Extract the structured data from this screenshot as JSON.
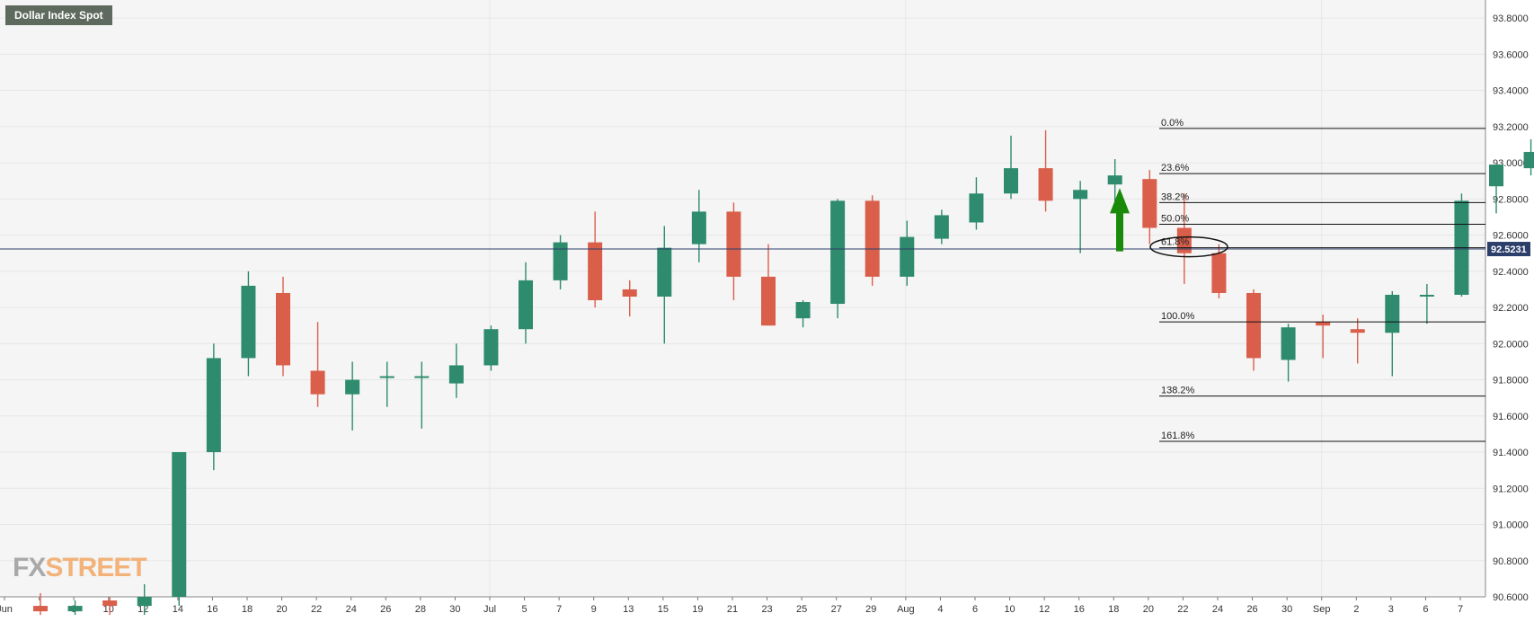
{
  "title": "Dollar Index Spot",
  "watermark": {
    "part1": "FX",
    "part2": "STREET"
  },
  "colors": {
    "up": "#2e8b6e",
    "down": "#d95f4b",
    "arrow": "#1a8a0a",
    "price_line": "#2c3e6a",
    "grid": "#e6e6e6",
    "plot_bg": "#f5f5f5"
  },
  "current_price_label": "92.5231",
  "chart_data": {
    "type": "candlestick",
    "ylim": [
      90.6,
      93.9
    ],
    "y_ticks": [
      "93.8000",
      "93.6000",
      "93.4000",
      "93.2000",
      "93.0000",
      "92.8000",
      "92.6000",
      "92.4000",
      "92.2000",
      "92.0000",
      "91.8000",
      "91.6000",
      "91.4000",
      "91.2000",
      "91.0000",
      "90.8000",
      "90.6000"
    ],
    "x_tick_labels": [
      "Jun",
      "4",
      "8",
      "10",
      "12",
      "14",
      "16",
      "18",
      "20",
      "22",
      "24",
      "26",
      "28",
      "30",
      "Jul",
      "5",
      "7",
      "9",
      "13",
      "15",
      "19",
      "21",
      "23",
      "25",
      "27",
      "29",
      "Aug",
      "4",
      "6",
      "10",
      "12",
      "16",
      "18",
      "20",
      "22",
      "24",
      "26",
      "30",
      "Sep",
      "2",
      "3",
      "6",
      "7"
    ],
    "current_price": 92.5231,
    "candles": [
      {
        "o": 90.55,
        "h": 90.62,
        "l": 90.5,
        "c": 90.52
      },
      {
        "o": 90.52,
        "h": 90.58,
        "l": 90.5,
        "c": 90.55
      },
      {
        "o": 90.58,
        "h": 90.6,
        "l": 90.5,
        "c": 90.55
      },
      {
        "o": 90.55,
        "h": 90.67,
        "l": 90.5,
        "c": 90.6
      },
      {
        "o": 90.6,
        "h": 91.4,
        "l": 90.55,
        "c": 91.4
      },
      {
        "o": 91.4,
        "h": 92.0,
        "l": 91.3,
        "c": 91.92
      },
      {
        "o": 91.92,
        "h": 92.4,
        "l": 91.82,
        "c": 92.32
      },
      {
        "o": 92.28,
        "h": 92.37,
        "l": 91.82,
        "c": 91.88
      },
      {
        "o": 91.85,
        "h": 92.12,
        "l": 91.65,
        "c": 91.72
      },
      {
        "o": 91.72,
        "h": 91.9,
        "l": 91.52,
        "c": 91.8
      },
      {
        "o": 91.82,
        "h": 91.9,
        "l": 91.65,
        "c": 91.82
      },
      {
        "o": 91.82,
        "h": 91.9,
        "l": 91.53,
        "c": 91.82
      },
      {
        "o": 91.78,
        "h": 92.0,
        "l": 91.7,
        "c": 91.88
      },
      {
        "o": 91.88,
        "h": 92.1,
        "l": 91.85,
        "c": 92.08
      },
      {
        "o": 92.08,
        "h": 92.45,
        "l": 92.0,
        "c": 92.35
      },
      {
        "o": 92.35,
        "h": 92.6,
        "l": 92.3,
        "c": 92.56
      },
      {
        "o": 92.56,
        "h": 92.73,
        "l": 92.2,
        "c": 92.24
      },
      {
        "o": 92.3,
        "h": 92.35,
        "l": 92.15,
        "c": 92.26
      },
      {
        "o": 92.26,
        "h": 92.65,
        "l": 92.0,
        "c": 92.53
      },
      {
        "o": 92.55,
        "h": 92.85,
        "l": 92.45,
        "c": 92.73
      },
      {
        "o": 92.73,
        "h": 92.78,
        "l": 92.24,
        "c": 92.37
      },
      {
        "o": 92.37,
        "h": 92.55,
        "l": 92.1,
        "c": 92.1
      },
      {
        "o": 92.14,
        "h": 92.24,
        "l": 92.09,
        "c": 92.23
      },
      {
        "o": 92.22,
        "h": 92.8,
        "l": 92.14,
        "c": 92.79
      },
      {
        "o": 92.79,
        "h": 92.82,
        "l": 92.32,
        "c": 92.37
      },
      {
        "o": 92.37,
        "h": 92.68,
        "l": 92.32,
        "c": 92.59
      },
      {
        "o": 92.58,
        "h": 92.74,
        "l": 92.55,
        "c": 92.71
      },
      {
        "o": 92.67,
        "h": 92.92,
        "l": 92.63,
        "c": 92.83
      },
      {
        "o": 92.83,
        "h": 93.15,
        "l": 92.8,
        "c": 92.97
      },
      {
        "o": 92.97,
        "h": 93.18,
        "l": 92.73,
        "c": 92.79
      },
      {
        "o": 92.8,
        "h": 92.9,
        "l": 92.5,
        "c": 92.85
      },
      {
        "o": 92.88,
        "h": 93.02,
        "l": 92.78,
        "c": 92.93
      },
      {
        "o": 92.91,
        "h": 92.96,
        "l": 92.55,
        "c": 92.64
      },
      {
        "o": 92.64,
        "h": 92.83,
        "l": 92.33,
        "c": 92.5
      },
      {
        "o": 92.5,
        "h": 92.55,
        "l": 92.25,
        "c": 92.28
      },
      {
        "o": 92.28,
        "h": 92.3,
        "l": 91.85,
        "c": 91.92
      },
      {
        "o": 91.91,
        "h": 92.11,
        "l": 91.79,
        "c": 92.09
      },
      {
        "o": 92.12,
        "h": 92.16,
        "l": 91.92,
        "c": 92.1
      },
      {
        "o": 92.08,
        "h": 92.14,
        "l": 91.89,
        "c": 92.06
      },
      {
        "o": 92.06,
        "h": 92.29,
        "l": 91.82,
        "c": 92.27
      },
      {
        "o": 92.27,
        "h": 92.33,
        "l": 92.11,
        "c": 92.27
      },
      {
        "o": 92.27,
        "h": 92.83,
        "l": 92.26,
        "c": 92.79
      },
      {
        "o": 92.87,
        "h": 92.99,
        "l": 92.72,
        "c": 92.99
      },
      {
        "o": 92.97,
        "h": 93.13,
        "l": 92.93,
        "c": 93.06
      },
      {
        "o": 93.06,
        "h": 93.18,
        "l": 92.81,
        "c": 92.91
      },
      {
        "o": 92.91,
        "h": 93.03,
        "l": 92.88,
        "c": 93.02
      },
      {
        "o": 93.02,
        "h": 93.02,
        "l": 92.46,
        "c": 92.52
      }
    ],
    "fibonacci": [
      {
        "label": "0.0%",
        "price": 93.19
      },
      {
        "label": "23.6%",
        "price": 92.94
      },
      {
        "label": "38.2%",
        "price": 92.78
      },
      {
        "label": "50.0%",
        "price": 92.66
      },
      {
        "label": "61.8%",
        "price": 92.53
      },
      {
        "label": "100.0%",
        "price": 92.12
      },
      {
        "label": "138.2%",
        "price": 91.71
      },
      {
        "label": "161.8%",
        "price": 91.46
      }
    ]
  }
}
